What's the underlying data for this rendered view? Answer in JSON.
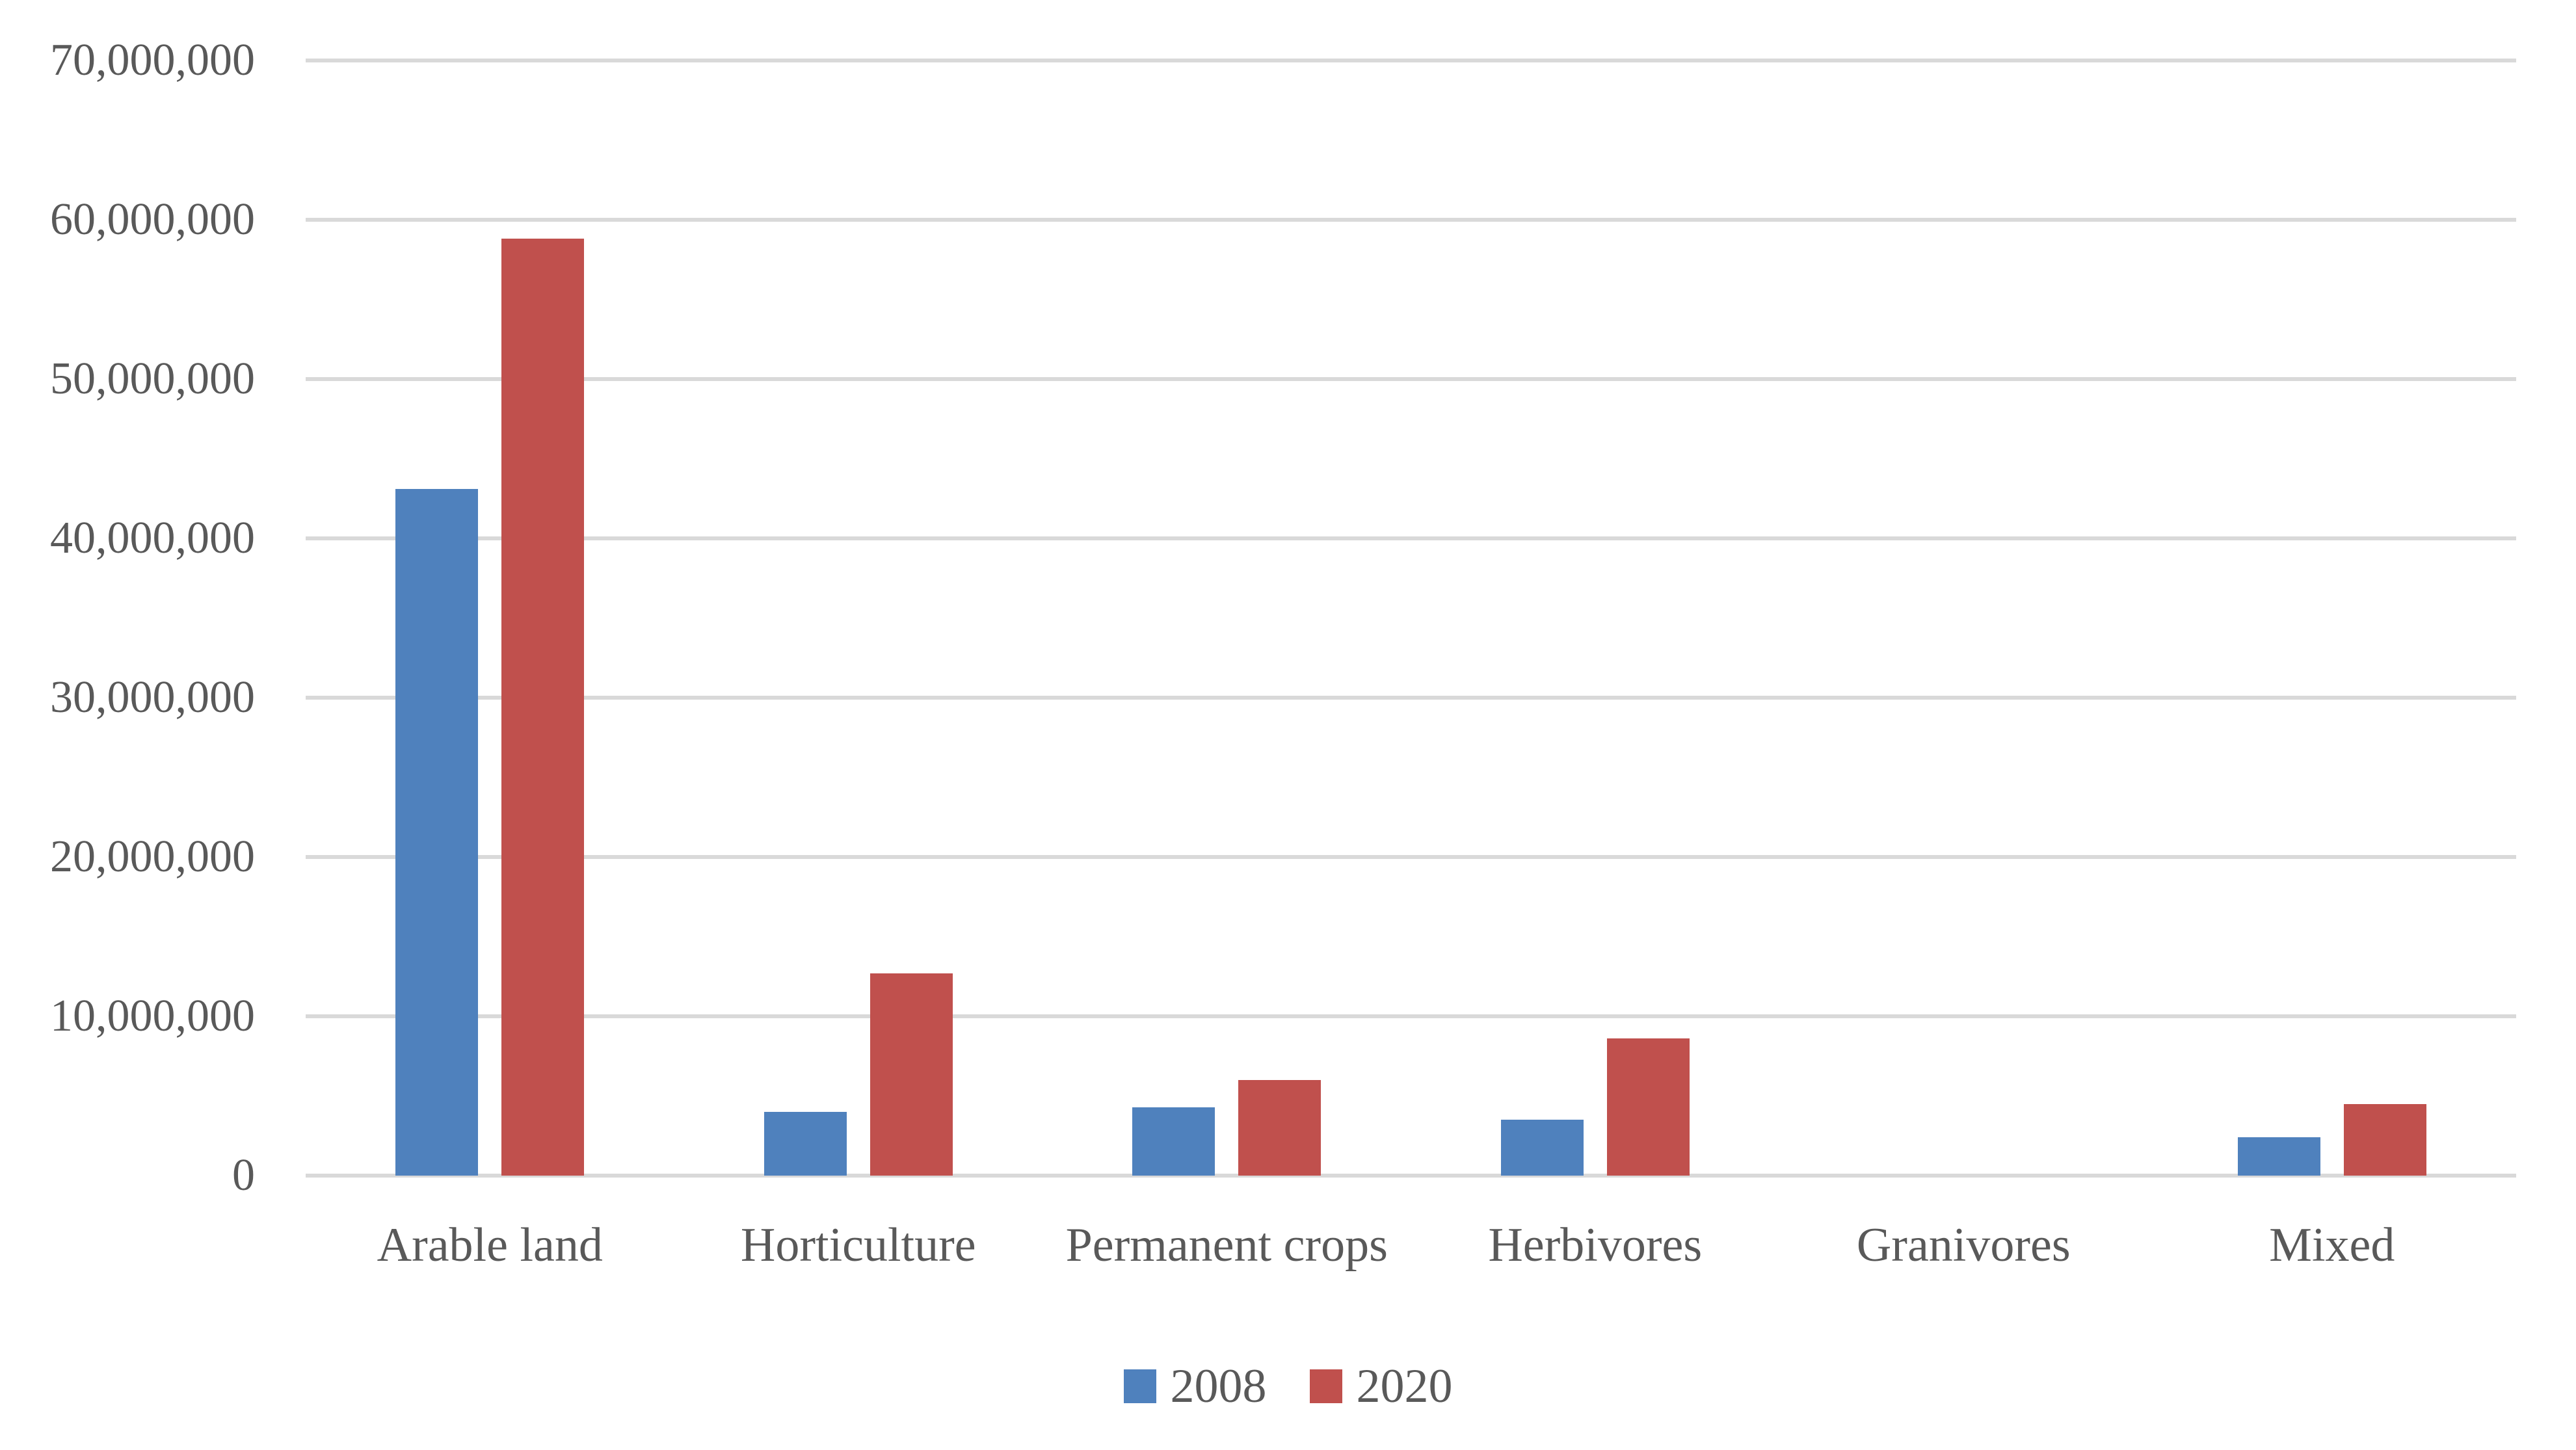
{
  "chart_data": {
    "type": "bar",
    "title": "",
    "xlabel": "",
    "ylabel": "",
    "categories": [
      "Arable land",
      "Horticulture",
      "Permanent crops",
      "Herbivores",
      "Granivores",
      "Mixed"
    ],
    "series": [
      {
        "name": "2008",
        "color": "#4f81bd",
        "values": [
          43100000,
          4000000,
          4300000,
          3500000,
          0,
          2400000
        ]
      },
      {
        "name": "2020",
        "color": "#c0504d",
        "values": [
          58800000,
          12700000,
          6000000,
          8600000,
          0,
          4500000
        ]
      }
    ],
    "ylim": [
      0,
      70000000
    ],
    "ytick_values": [
      0,
      10000000,
      20000000,
      30000000,
      40000000,
      50000000,
      60000000,
      70000000
    ],
    "ytick_labels": [
      "0",
      "10,000,000",
      "20,000,000",
      "30,000,000",
      "40,000,000",
      "50,000,000",
      "60,000,000",
      "70,000,000"
    ],
    "grid": true,
    "legend_position": "bottom",
    "colors": {
      "gridline": "#d9d9d9",
      "axis_text": "#595959",
      "background": "#ffffff"
    }
  }
}
